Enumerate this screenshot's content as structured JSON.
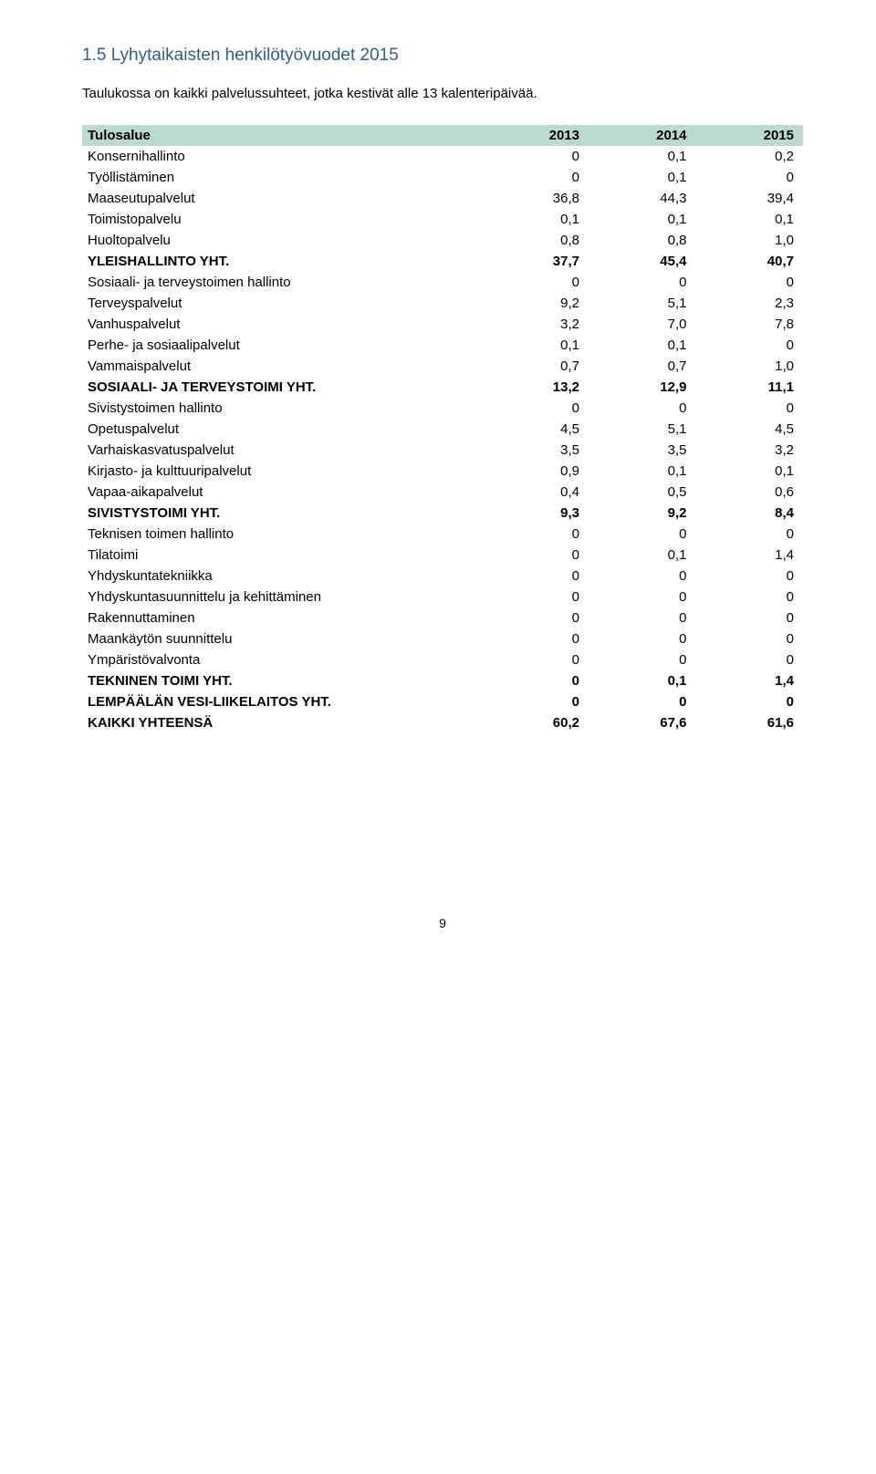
{
  "heading": {
    "text": "1.5 Lyhytaikaisten henkilötyövuodet 2015",
    "color": "#2c5f8d"
  },
  "intro": "Taulukossa on kaikki palvelussuhteet, jotka kestivät alle 13 kalenteripäivää.",
  "table": {
    "header_bg": "#bcd8d5",
    "columns": [
      "Tulosalue",
      "2013",
      "2014",
      "2015"
    ],
    "rows": [
      {
        "label": "Konsernihallinto",
        "v": [
          "0",
          "0,1",
          "0,2"
        ],
        "bold": false
      },
      {
        "label": "Työllistäminen",
        "v": [
          "0",
          "0,1",
          "0"
        ],
        "bold": false
      },
      {
        "label": "Maaseutupalvelut",
        "v": [
          "36,8",
          "44,3",
          "39,4"
        ],
        "bold": false
      },
      {
        "label": "Toimistopalvelu",
        "v": [
          "0,1",
          "0,1",
          "0,1"
        ],
        "bold": false
      },
      {
        "label": "Huoltopalvelu",
        "v": [
          "0,8",
          "0,8",
          "1,0"
        ],
        "bold": false
      },
      {
        "label": "YLEISHALLINTO YHT.",
        "v": [
          "37,7",
          "45,4",
          "40,7"
        ],
        "bold": true
      },
      {
        "label": "Sosiaali- ja terveystoimen hallinto",
        "v": [
          "0",
          "0",
          "0"
        ],
        "bold": false
      },
      {
        "label": "Terveyspalvelut",
        "v": [
          "9,2",
          "5,1",
          "2,3"
        ],
        "bold": false
      },
      {
        "label": "Vanhuspalvelut",
        "v": [
          "3,2",
          "7,0",
          "7,8"
        ],
        "bold": false
      },
      {
        "label": "Perhe- ja sosiaalipalvelut",
        "v": [
          "0,1",
          "0,1",
          "0"
        ],
        "bold": false
      },
      {
        "label": "Vammaispalvelut",
        "v": [
          "0,7",
          "0,7",
          "1,0"
        ],
        "bold": false
      },
      {
        "label": "SOSIAALI- JA TERVEYSTOIMI YHT.",
        "v": [
          "13,2",
          "12,9",
          "11,1"
        ],
        "bold": true
      },
      {
        "label": "Sivistystoimen hallinto",
        "v": [
          "0",
          "0",
          "0"
        ],
        "bold": false
      },
      {
        "label": "Opetuspalvelut",
        "v": [
          "4,5",
          "5,1",
          "4,5"
        ],
        "bold": false
      },
      {
        "label": "Varhaiskasvatuspalvelut",
        "v": [
          "3,5",
          "3,5",
          "3,2"
        ],
        "bold": false
      },
      {
        "label": "Kirjasto- ja kulttuuripalvelut",
        "v": [
          "0,9",
          "0,1",
          "0,1"
        ],
        "bold": false
      },
      {
        "label": "Vapaa-aikapalvelut",
        "v": [
          "0,4",
          "0,5",
          "0,6"
        ],
        "bold": false
      },
      {
        "label": "SIVISTYSTOIMI YHT.",
        "v": [
          "9,3",
          "9,2",
          "8,4"
        ],
        "bold": true
      },
      {
        "label": "Teknisen toimen hallinto",
        "v": [
          "0",
          "0",
          "0"
        ],
        "bold": false
      },
      {
        "label": "Tilatoimi",
        "v": [
          "0",
          "0,1",
          "1,4"
        ],
        "bold": false
      },
      {
        "label": "Yhdyskuntatekniikka",
        "v": [
          "0",
          "0",
          "0"
        ],
        "bold": false
      },
      {
        "label": "Yhdyskuntasuunnittelu ja kehittäminen",
        "v": [
          "0",
          "0",
          "0"
        ],
        "bold": false
      },
      {
        "label": "Rakennuttaminen",
        "v": [
          "0",
          "0",
          "0"
        ],
        "bold": false
      },
      {
        "label": "Maankäytön suunnittelu",
        "v": [
          "0",
          "0",
          "0"
        ],
        "bold": false
      },
      {
        "label": "Ympäristövalvonta",
        "v": [
          "0",
          "0",
          "0"
        ],
        "bold": false
      },
      {
        "label": "TEKNINEN TOIMI YHT.",
        "v": [
          "0",
          "0,1",
          "1,4"
        ],
        "bold": true
      },
      {
        "label": "LEMPÄÄLÄN VESI-LIIKELAITOS YHT.",
        "v": [
          "0",
          "0",
          "0"
        ],
        "bold": true
      },
      {
        "label": "KAIKKI YHTEENSÄ",
        "v": [
          "60,2",
          "67,6",
          "61,6"
        ],
        "bold": true
      }
    ]
  },
  "page_number": "9"
}
